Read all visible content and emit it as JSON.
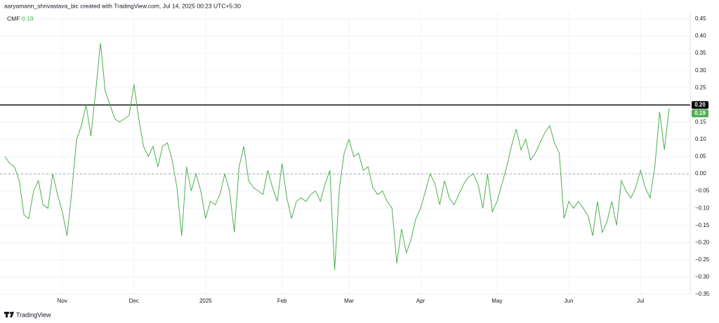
{
  "credit": "aaryamann_shrivastava_bic created with TradingView.com, Jul 14, 2025 00:23 UTC+5:30",
  "watermark": "TradingView",
  "chart_data": {
    "type": "line",
    "categories": [
      null,
      null,
      null,
      null,
      null,
      null,
      null,
      null,
      null,
      null,
      null,
      null,
      "Nov",
      null,
      null,
      null,
      null,
      null,
      null,
      null,
      null,
      null,
      null,
      null,
      null,
      null,
      null,
      "Dec",
      null,
      null,
      null,
      null,
      null,
      null,
      null,
      null,
      null,
      null,
      null,
      null,
      null,
      null,
      "2025",
      null,
      null,
      null,
      null,
      null,
      null,
      null,
      null,
      null,
      null,
      null,
      null,
      null,
      null,
      null,
      "Feb",
      null,
      null,
      null,
      null,
      null,
      null,
      null,
      null,
      null,
      null,
      null,
      null,
      null,
      "Mar",
      null,
      null,
      null,
      null,
      null,
      null,
      null,
      null,
      null,
      null,
      null,
      null,
      null,
      null,
      "Apr",
      null,
      null,
      null,
      null,
      null,
      null,
      null,
      null,
      null,
      null,
      null,
      null,
      null,
      null,
      null,
      "May",
      null,
      null,
      null,
      null,
      null,
      null,
      null,
      null,
      null,
      null,
      null,
      null,
      null,
      null,
      "Jun",
      null,
      null,
      null,
      null,
      null,
      null,
      null,
      null,
      null,
      null,
      null,
      null,
      null,
      null,
      "Jul",
      null,
      null,
      null,
      null,
      null,
      null
    ],
    "series": [
      {
        "name": "CMF",
        "color": "#4caf50",
        "last_value_label": "0.19",
        "values": [
          0.05,
          0.03,
          0.02,
          -0.02,
          -0.12,
          -0.13,
          -0.05,
          -0.02,
          -0.09,
          -0.1,
          0,
          -0.06,
          -0.11,
          -0.18,
          -0.05,
          0.1,
          0.14,
          0.2,
          0.11,
          0.24,
          0.38,
          0.24,
          0.2,
          0.16,
          0.15,
          0.16,
          0.17,
          0.26,
          0.16,
          0.08,
          0.05,
          0.08,
          0.02,
          0.08,
          0.09,
          0.04,
          -0.04,
          -0.18,
          0.02,
          -0.05,
          0,
          -0.05,
          -0.13,
          -0.08,
          -0.09,
          -0.06,
          0,
          -0.05,
          -0.17,
          0.02,
          0.08,
          -0.02,
          -0.04,
          -0.05,
          -0.06,
          0.01,
          -0.04,
          -0.08,
          0.03,
          -0.07,
          -0.13,
          -0.08,
          -0.07,
          -0.08,
          -0.06,
          -0.05,
          -0.08,
          -0.03,
          0.01,
          -0.28,
          -0.04,
          0.06,
          0.1,
          0.05,
          0.06,
          0.01,
          0.02,
          -0.04,
          -0.06,
          -0.05,
          -0.08,
          -0.1,
          -0.26,
          -0.16,
          -0.23,
          -0.19,
          -0.13,
          -0.1,
          -0.05,
          0,
          -0.03,
          -0.09,
          -0.02,
          -0.07,
          -0.09,
          -0.06,
          -0.03,
          -0.01,
          0,
          -0.03,
          -0.1,
          0,
          -0.11,
          -0.08,
          -0.03,
          0.02,
          0.08,
          0.13,
          0.07,
          0.1,
          0.04,
          0.06,
          0.09,
          0.12,
          0.14,
          0.09,
          0.06,
          -0.13,
          -0.08,
          -0.1,
          -0.08,
          -0.1,
          -0.12,
          -0.18,
          -0.08,
          -0.17,
          -0.14,
          -0.08,
          -0.15,
          -0.02,
          -0.05,
          -0.07,
          -0.04,
          0.01,
          -0.04,
          -0.07,
          0.02,
          0.18,
          0.07,
          0.19
        ]
      }
    ],
    "ylim": [
      -0.35,
      0.45
    ],
    "yticks": [
      {
        "value": 0.45,
        "label": "0.45"
      },
      {
        "value": 0.4,
        "label": "0.40"
      },
      {
        "value": 0.35,
        "label": "0.35"
      },
      {
        "value": 0.3,
        "label": "0.30"
      },
      {
        "value": 0.25,
        "label": "0.25"
      },
      {
        "value": 0.2,
        "label": "0.20"
      },
      {
        "value": 0.15,
        "label": "0.15"
      },
      {
        "value": 0.1,
        "label": "0.10"
      },
      {
        "value": 0.05,
        "label": "0.05"
      },
      {
        "value": 0,
        "label": "0.00"
      },
      {
        "value": -0.05,
        "label": "−0.05"
      },
      {
        "value": -0.1,
        "label": "−0.10"
      },
      {
        "value": -0.15,
        "label": "−0.15"
      },
      {
        "value": -0.2,
        "label": "−0.20"
      },
      {
        "value": -0.25,
        "label": "−0.25"
      },
      {
        "value": -0.3,
        "label": "−0.30"
      },
      {
        "value": -0.35,
        "label": "−0.35"
      }
    ],
    "grid": true,
    "baseline": {
      "value": 0,
      "style": "dashed",
      "color": "#9598a1"
    },
    "hline": {
      "value": 0.2,
      "label": "0.20",
      "color": "#000000"
    }
  }
}
